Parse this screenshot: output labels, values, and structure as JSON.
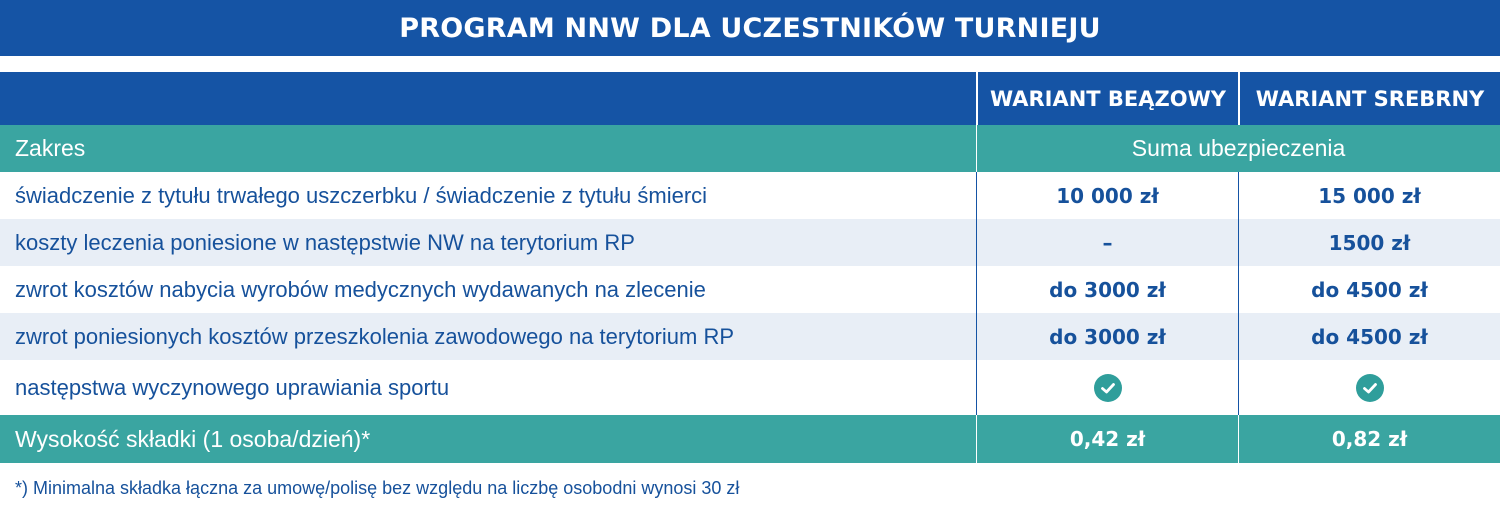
{
  "title": "PROGRAM NNW DLA UCZESTNIKÓW TURNIEJU",
  "header": {
    "col1": "",
    "col2": "WARIANT BEĄZOWY",
    "col3": "WARIANT SREBRNY"
  },
  "scope_row": {
    "label": "Zakres",
    "sum_label": "Suma ubezpieczenia"
  },
  "rows": [
    {
      "label": "świadczenie z tytułu trwałego uszczerbku / świadczenie z tytułu śmierci",
      "v1": "10 000 zł",
      "v2": "15 000 zł"
    },
    {
      "label": "koszty leczenia poniesione w następstwie NW na terytorium RP",
      "v1": "–",
      "v2": "1500 zł"
    },
    {
      "label": "zwrot kosztów nabycia wyrobów medycznych wydawanych na zlecenie",
      "v1": "do 3000 zł",
      "v2": "do 4500 zł"
    },
    {
      "label": "zwrot poniesionych kosztów przeszkolenia zawodowego na terytorium RP",
      "v1": "do 3000 zł",
      "v2": "do 4500 zł"
    },
    {
      "label": "następstwa wyczynowego uprawiania sportu",
      "v1_icon": "check-circle-icon",
      "v2_icon": "check-circle-icon"
    }
  ],
  "premium_row": {
    "label": "Wysokość składki (1 osoba/dzień)*",
    "v1": "0,42 zł",
    "v2": "0,82 zł"
  },
  "footnote": "*) Minimalna składka łączna za umowę/polisę bez względu na liczbę osobodni wynosi 30 zł",
  "colors": {
    "navy": "#1554a5",
    "teal": "#3aa5a1",
    "text_blue": "#16519b",
    "row_alt": "#e8eef6"
  }
}
